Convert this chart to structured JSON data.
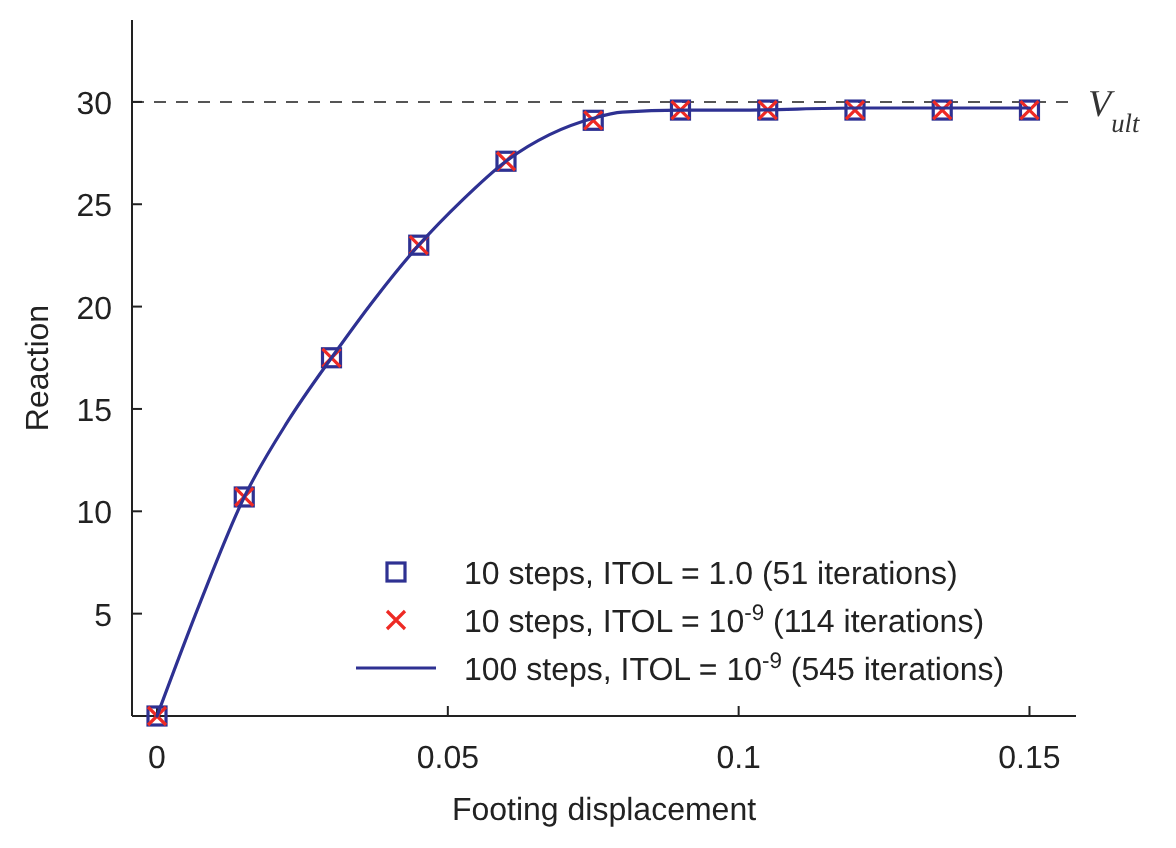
{
  "chart_data": {
    "type": "scatter",
    "xlabel": "Footing displacement",
    "ylabel": "Reaction",
    "xlim": [
      -0.0043,
      0.158
    ],
    "ylim": [
      0,
      34
    ],
    "xticks": [
      0,
      0.05,
      0.1,
      0.15
    ],
    "yticks": [
      5,
      10,
      15,
      20,
      25,
      30
    ],
    "legend": "bottom right",
    "grid": false,
    "ref_lines": [
      {
        "axis": "y",
        "value": 30,
        "label": "V$_{ult}$",
        "color": "#555555",
        "line_style": "dashed"
      }
    ],
    "series": [
      {
        "name": "10 steps, ITOL = 1.0 (51 iterations)",
        "marker": "square",
        "color": "#2e3192",
        "x": [
          0,
          0.015,
          0.03,
          0.045,
          0.06,
          0.075,
          0.09,
          0.105,
          0.12,
          0.135,
          0.15
        ],
        "values": [
          0,
          10.7,
          17.5,
          23.0,
          27.1,
          29.1,
          29.6,
          29.6,
          29.6,
          29.6,
          29.6
        ]
      },
      {
        "name": "10 steps, ITOL = 10$^{-9}$ (114 iterations)",
        "marker": "cross",
        "color": "#ee2a24",
        "x": [
          0,
          0.015,
          0.03,
          0.045,
          0.06,
          0.075,
          0.09,
          0.105,
          0.12,
          0.135,
          0.15
        ],
        "values": [
          0,
          10.7,
          17.5,
          23.0,
          27.1,
          29.1,
          29.6,
          29.6,
          29.6,
          29.6,
          29.6
        ]
      },
      {
        "name": "100 steps, ITOL = 10$^{-9}$ (545 iterations)",
        "type": "line",
        "marker": "none",
        "line_style": "solid",
        "color": "#2e3192",
        "x": [
          0,
          0.0075,
          0.015,
          0.0225,
          0.03,
          0.0375,
          0.045,
          0.0525,
          0.06,
          0.0675,
          0.075,
          0.08,
          0.09,
          0.1,
          0.12,
          0.15
        ],
        "values": [
          0,
          5.6,
          10.7,
          14.4,
          17.5,
          20.4,
          23.0,
          25.2,
          27.1,
          28.4,
          29.2,
          29.5,
          29.6,
          29.6,
          29.7,
          29.7
        ]
      }
    ]
  }
}
